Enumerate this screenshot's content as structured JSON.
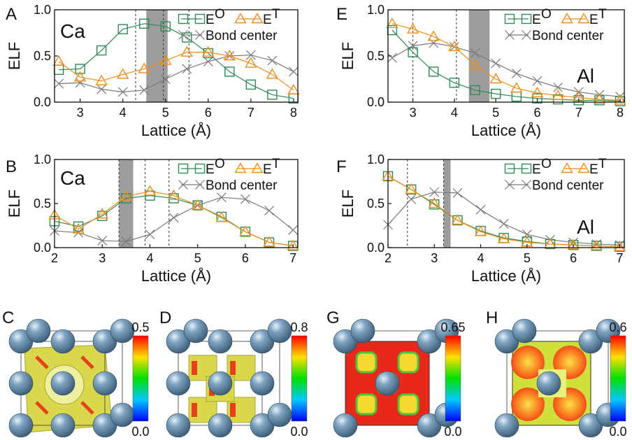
{
  "colors": {
    "eo": "#2e8b57",
    "et": "#f28c1a",
    "bond": "#7a7a7a",
    "shade": "#8c8c8c",
    "sphere": "#5f86a3",
    "iso_yellow": "#d8d84a"
  },
  "legend_labels": {
    "eo": "E",
    "eo_sup": "O",
    "et": "E",
    "et_sup": "T",
    "bond": "Bond center"
  },
  "chart_data": [
    {
      "panel": "A",
      "type": "line",
      "element_label": "Ca",
      "xlabel": "Lattice (Å)",
      "ylabel": "ELF",
      "xlim": [
        2.4,
        8.1
      ],
      "ylim": [
        0.0,
        1.0
      ],
      "xticks": [
        3,
        4,
        5,
        6,
        7,
        8
      ],
      "yticks": [
        0.0,
        0.5,
        1.0
      ],
      "shaded_band": [
        4.55,
        5.05
      ],
      "vlines": [
        4.3,
        4.95,
        5.55
      ],
      "series": [
        {
          "key": "eo",
          "marker": "square",
          "x": [
            2.5,
            3.0,
            3.5,
            4.0,
            4.5,
            5.0,
            5.5,
            6.0,
            6.5,
            7.0,
            7.5,
            8.0
          ],
          "y": [
            0.35,
            0.36,
            0.56,
            0.79,
            0.85,
            0.82,
            0.7,
            0.53,
            0.33,
            0.19,
            0.08,
            0.04
          ]
        },
        {
          "key": "et",
          "marker": "triangle",
          "x": [
            2.5,
            3.0,
            3.5,
            4.0,
            4.5,
            5.0,
            5.5,
            6.0,
            6.5,
            7.0,
            7.5,
            8.0
          ],
          "y": [
            0.44,
            0.27,
            0.23,
            0.3,
            0.36,
            0.45,
            0.54,
            0.54,
            0.5,
            0.42,
            0.3,
            0.13
          ]
        },
        {
          "key": "bond",
          "marker": "x",
          "x": [
            2.5,
            3.0,
            3.5,
            4.0,
            4.5,
            5.0,
            5.5,
            6.0,
            6.5,
            7.0,
            7.5,
            8.0
          ],
          "y": [
            0.2,
            0.21,
            0.14,
            0.11,
            0.13,
            0.25,
            0.36,
            0.44,
            0.5,
            0.51,
            0.45,
            0.33
          ]
        }
      ]
    },
    {
      "panel": "B",
      "type": "line",
      "element_label": "Ca",
      "xlabel": "Lattice (Å)",
      "ylabel": "ELF",
      "xlim": [
        2.0,
        7.1
      ],
      "ylim": [
        0.0,
        1.0
      ],
      "xticks": [
        2,
        3,
        4,
        5,
        6,
        7
      ],
      "yticks": [
        0.0,
        0.5,
        1.0
      ],
      "shaded_band": [
        3.35,
        3.65
      ],
      "vlines": [
        3.35,
        3.9,
        4.4
      ],
      "series": [
        {
          "key": "eo",
          "marker": "square",
          "x": [
            2.0,
            2.5,
            3.0,
            3.5,
            4.0,
            4.5,
            5.0,
            5.5,
            6.0,
            6.5,
            7.0
          ],
          "y": [
            0.3,
            0.24,
            0.36,
            0.56,
            0.59,
            0.56,
            0.48,
            0.35,
            0.18,
            0.06,
            0.02
          ]
        },
        {
          "key": "et",
          "marker": "triangle",
          "x": [
            2.0,
            2.5,
            3.0,
            3.5,
            4.0,
            4.5,
            5.0,
            5.5,
            6.0,
            6.5,
            7.0
          ],
          "y": [
            0.37,
            0.21,
            0.38,
            0.58,
            0.64,
            0.59,
            0.48,
            0.34,
            0.18,
            0.06,
            0.02
          ]
        },
        {
          "key": "bond",
          "marker": "x",
          "x": [
            2.0,
            2.5,
            3.0,
            3.5,
            4.0,
            4.5,
            5.0,
            5.5,
            6.0,
            6.5,
            7.0
          ],
          "y": [
            0.19,
            0.17,
            0.08,
            0.07,
            0.15,
            0.34,
            0.48,
            0.57,
            0.55,
            0.42,
            0.2
          ]
        }
      ]
    },
    {
      "panel": "E",
      "type": "line",
      "element_label": "Al",
      "xlabel": "Lattice (Å)",
      "ylabel": "ELF",
      "xlim": [
        2.4,
        8.1
      ],
      "ylim": [
        0.0,
        1.0
      ],
      "xticks": [
        3,
        4,
        5,
        6,
        7,
        8
      ],
      "yticks": [
        0.0,
        0.5,
        1.0
      ],
      "shaded_band": [
        4.35,
        4.85
      ],
      "vlines": [
        3.0,
        4.05
      ],
      "series": [
        {
          "key": "eo",
          "marker": "square",
          "x": [
            2.5,
            3.0,
            3.5,
            4.0,
            4.5,
            5.0,
            5.5,
            6.0,
            6.5,
            7.0,
            7.5,
            8.0
          ],
          "y": [
            0.78,
            0.54,
            0.33,
            0.21,
            0.13,
            0.09,
            0.06,
            0.04,
            0.03,
            0.02,
            0.02,
            0.01
          ]
        },
        {
          "key": "et",
          "marker": "triangle",
          "x": [
            2.5,
            3.0,
            3.5,
            4.0,
            4.5,
            5.0,
            5.5,
            6.0,
            6.5,
            7.0,
            7.5,
            8.0
          ],
          "y": [
            0.85,
            0.79,
            0.71,
            0.6,
            0.4,
            0.25,
            0.15,
            0.1,
            0.07,
            0.05,
            0.03,
            0.02
          ]
        },
        {
          "key": "bond",
          "marker": "x",
          "x": [
            2.5,
            3.0,
            3.5,
            4.0,
            4.5,
            5.0,
            5.5,
            6.0,
            6.5,
            7.0,
            7.5,
            8.0
          ],
          "y": [
            0.48,
            0.61,
            0.64,
            0.6,
            0.53,
            0.42,
            0.31,
            0.23,
            0.16,
            0.11,
            0.08,
            0.06
          ]
        }
      ]
    },
    {
      "panel": "F",
      "type": "line",
      "element_label": "Al",
      "xlabel": "Lattice (Å)",
      "ylabel": "ELF",
      "xlim": [
        2.0,
        7.1
      ],
      "ylim": [
        0.0,
        1.0
      ],
      "xticks": [
        2,
        3,
        4,
        5,
        6,
        7
      ],
      "yticks": [
        0.0,
        0.5,
        1.0
      ],
      "shaded_band": [
        3.2,
        3.35
      ],
      "vlines": [
        2.42,
        3.2
      ],
      "series": [
        {
          "key": "eo",
          "marker": "square",
          "x": [
            2.0,
            2.5,
            3.0,
            3.5,
            4.0,
            4.5,
            5.0,
            5.5,
            6.0,
            6.5,
            7.0
          ],
          "y": [
            0.81,
            0.66,
            0.49,
            0.31,
            0.19,
            0.11,
            0.07,
            0.04,
            0.03,
            0.02,
            0.01
          ]
        },
        {
          "key": "et",
          "marker": "triangle",
          "x": [
            2.0,
            2.5,
            3.0,
            3.5,
            4.0,
            4.5,
            5.0,
            5.5,
            6.0,
            6.5,
            7.0
          ],
          "y": [
            0.81,
            0.66,
            0.5,
            0.31,
            0.18,
            0.1,
            0.06,
            0.04,
            0.03,
            0.02,
            0.01
          ]
        },
        {
          "key": "bond",
          "marker": "x",
          "x": [
            2.0,
            2.5,
            3.0,
            3.5,
            4.0,
            4.5,
            5.0,
            5.5,
            6.0,
            6.5,
            7.0
          ],
          "y": [
            0.26,
            0.55,
            0.63,
            0.62,
            0.43,
            0.27,
            0.15,
            0.09,
            0.06,
            0.04,
            0.03
          ]
        }
      ]
    }
  ],
  "structures": [
    {
      "panel": "C",
      "colorbar_max": "0.5",
      "colorbar_min": "0.0"
    },
    {
      "panel": "D",
      "colorbar_max": "0.8",
      "colorbar_min": "0.0"
    },
    {
      "panel": "G",
      "colorbar_max": "0.65",
      "colorbar_min": "0.0"
    },
    {
      "panel": "H",
      "colorbar_max": "0.6",
      "colorbar_min": "0.0"
    }
  ]
}
